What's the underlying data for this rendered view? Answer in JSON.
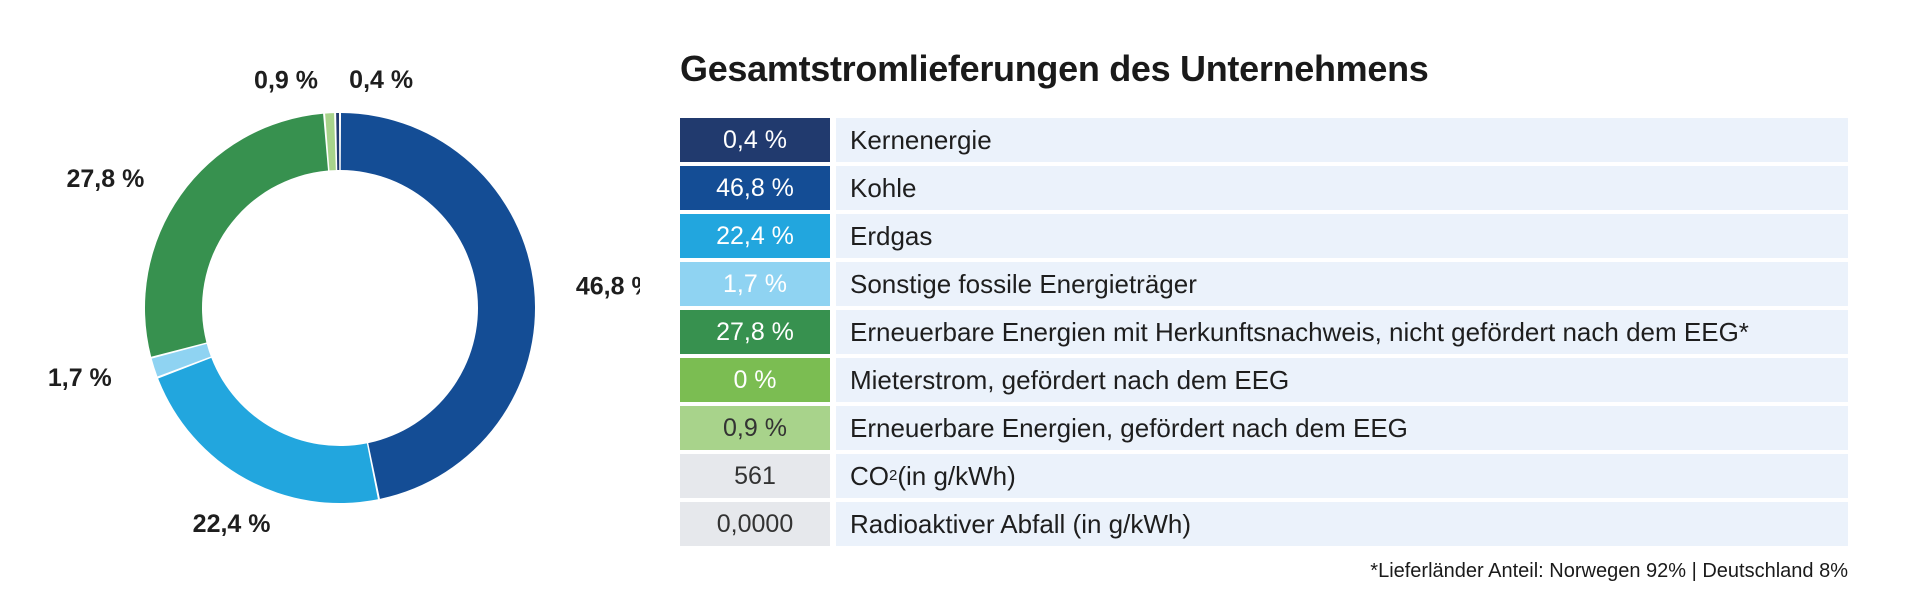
{
  "title": "Gesamtstromlieferungen des Unternehmens",
  "chart_data": {
    "type": "pie",
    "slices": [
      {
        "name": "Kernenergie",
        "value": 0.4,
        "value_label": "0,4 %",
        "color": "#213a6e"
      },
      {
        "name": "Kohle",
        "value": 46.8,
        "value_label": "46,8 %",
        "color": "#144d95"
      },
      {
        "name": "Erdgas",
        "value": 22.4,
        "value_label": "22,4 %",
        "color": "#22a6de"
      },
      {
        "name": "Sonstige fossile Energieträger",
        "value": 1.7,
        "value_label": "1,7 %",
        "color": "#8fd3f2"
      },
      {
        "name": "Erneuerbare Energien mit Herkunftsnachweis, nicht gefördert nach dem EEG*",
        "value": 27.8,
        "value_label": "27,8 %",
        "color": "#37914f"
      },
      {
        "name": "Mieterstrom, gefördert nach dem EEG",
        "value": 0,
        "value_label": "0 %",
        "color": "#7bbd52"
      },
      {
        "name": "Erneuerbare Energien, gefördert nach dem EEG",
        "value": 0.9,
        "value_label": "0,9 %",
        "color": "#a8d38b"
      }
    ]
  },
  "extra_rows": [
    {
      "value": "561",
      "label_main": "CO",
      "label_sub": "2",
      "label_rest": " (in g/kWh)",
      "color": "#e6e8ec"
    },
    {
      "value": "0,0000",
      "label_main": "Radioaktiver Abfall (in g/kWh)",
      "label_sub": "",
      "label_rest": "",
      "color": "#e6e8ec"
    }
  ],
  "footnote": "*Lieferländer Anteil: Norwegen 92%  | Deutschland 8%"
}
